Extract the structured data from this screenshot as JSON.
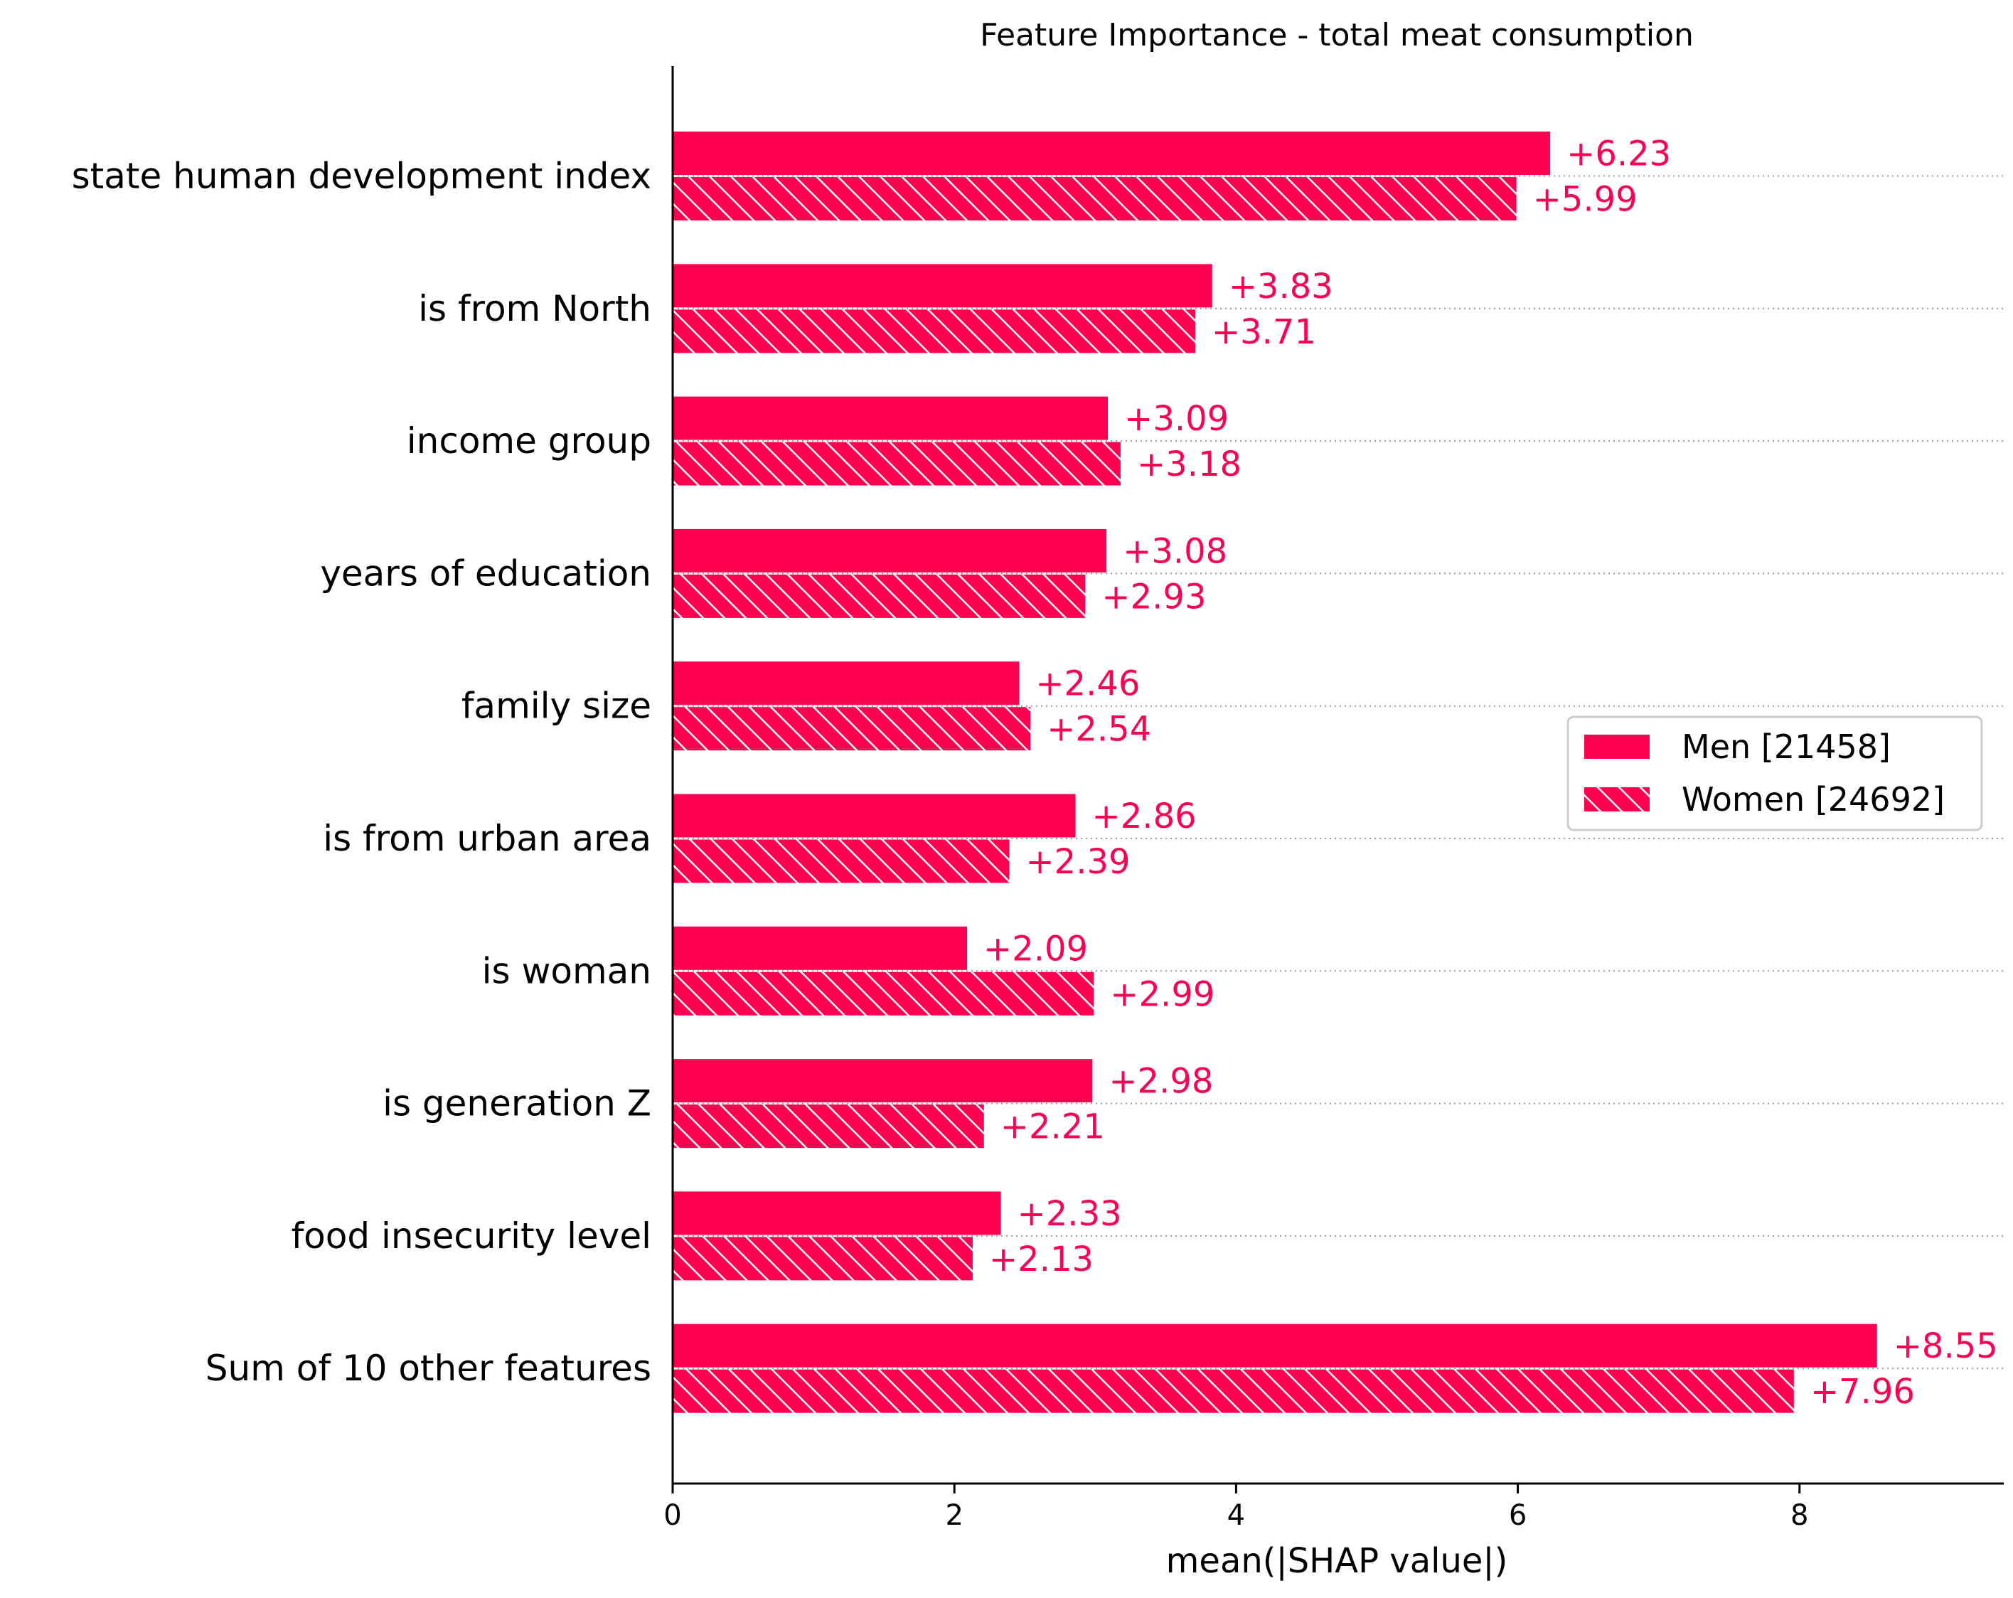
{
  "chart_data": {
    "type": "bar",
    "orientation": "horizontal",
    "title": "Feature Importance - total meat consumption",
    "xlabel": "mean(|SHAP value|)",
    "ylabel": "",
    "xlim": [
      0,
      9.45
    ],
    "xticks": [
      0,
      2,
      4,
      6,
      8
    ],
    "grid": false,
    "legend_position": "center-right",
    "bar_color": "#ff0051",
    "categories": [
      "state human development index",
      "is from North",
      "income group",
      "years of education",
      "family size",
      "is from urban area",
      "is woman",
      "is generation Z",
      "food insecurity level",
      "Sum of 10 other features"
    ],
    "series": [
      {
        "name": "Men [21458]",
        "pattern": "solid",
        "values": [
          6.23,
          3.83,
          3.09,
          3.08,
          2.46,
          2.86,
          2.09,
          2.98,
          2.33,
          8.55
        ],
        "value_labels": [
          "+6.23",
          "+3.83",
          "+3.09",
          "+3.08",
          "+2.46",
          "+2.86",
          "+2.09",
          "+2.98",
          "+2.33",
          "+8.55"
        ]
      },
      {
        "name": "Women [24692]",
        "pattern": "hatched",
        "values": [
          5.99,
          3.71,
          3.18,
          2.93,
          2.54,
          2.39,
          2.99,
          2.21,
          2.13,
          7.96
        ],
        "value_labels": [
          "+5.99",
          "+3.71",
          "+3.18",
          "+2.93",
          "+2.54",
          "+2.39",
          "+2.99",
          "+2.21",
          "+2.13",
          "+7.96"
        ]
      }
    ]
  }
}
